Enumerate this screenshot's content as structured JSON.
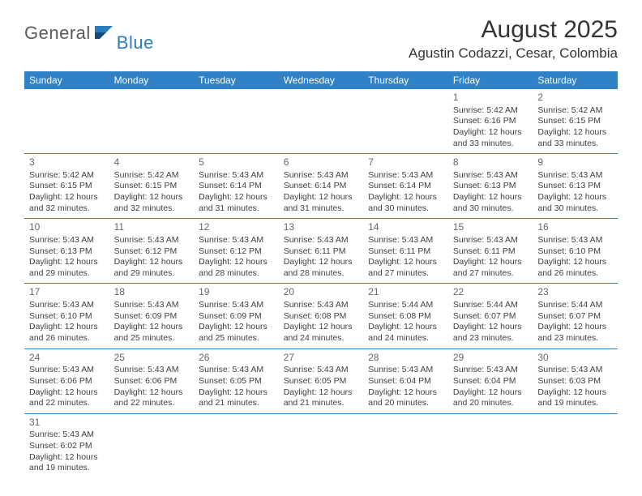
{
  "logo": {
    "word1": "General",
    "word2": "Blue"
  },
  "title": "August 2025",
  "location": "Agustin Codazzi, Cesar, Colombia",
  "colors": {
    "header_bg": "#3081c5",
    "header_text": "#ffffff",
    "row_divider": "#3081c5",
    "cell_divider": "#bbbbbb",
    "body_text": "#404040",
    "daynum_text": "#666666",
    "title_text": "#333333",
    "logo_gray": "#5a5a5a",
    "logo_blue": "#2b7bbf"
  },
  "fonts": {
    "title_pt": 30,
    "location_pt": 17,
    "header_pt": 12,
    "daynum_pt": 12,
    "cell_pt": 10.5
  },
  "day_headers": [
    "Sunday",
    "Monday",
    "Tuesday",
    "Wednesday",
    "Thursday",
    "Friday",
    "Saturday"
  ],
  "weeks": [
    [
      null,
      null,
      null,
      null,
      null,
      {
        "n": "1",
        "sunrise": "5:42 AM",
        "sunset": "6:16 PM",
        "day_h": "12",
        "day_m": "33"
      },
      {
        "n": "2",
        "sunrise": "5:42 AM",
        "sunset": "6:15 PM",
        "day_h": "12",
        "day_m": "33"
      }
    ],
    [
      {
        "n": "3",
        "sunrise": "5:42 AM",
        "sunset": "6:15 PM",
        "day_h": "12",
        "day_m": "32"
      },
      {
        "n": "4",
        "sunrise": "5:42 AM",
        "sunset": "6:15 PM",
        "day_h": "12",
        "day_m": "32"
      },
      {
        "n": "5",
        "sunrise": "5:43 AM",
        "sunset": "6:14 PM",
        "day_h": "12",
        "day_m": "31"
      },
      {
        "n": "6",
        "sunrise": "5:43 AM",
        "sunset": "6:14 PM",
        "day_h": "12",
        "day_m": "31"
      },
      {
        "n": "7",
        "sunrise": "5:43 AM",
        "sunset": "6:14 PM",
        "day_h": "12",
        "day_m": "30"
      },
      {
        "n": "8",
        "sunrise": "5:43 AM",
        "sunset": "6:13 PM",
        "day_h": "12",
        "day_m": "30"
      },
      {
        "n": "9",
        "sunrise": "5:43 AM",
        "sunset": "6:13 PM",
        "day_h": "12",
        "day_m": "30"
      }
    ],
    [
      {
        "n": "10",
        "sunrise": "5:43 AM",
        "sunset": "6:13 PM",
        "day_h": "12",
        "day_m": "29"
      },
      {
        "n": "11",
        "sunrise": "5:43 AM",
        "sunset": "6:12 PM",
        "day_h": "12",
        "day_m": "29"
      },
      {
        "n": "12",
        "sunrise": "5:43 AM",
        "sunset": "6:12 PM",
        "day_h": "12",
        "day_m": "28"
      },
      {
        "n": "13",
        "sunrise": "5:43 AM",
        "sunset": "6:11 PM",
        "day_h": "12",
        "day_m": "28"
      },
      {
        "n": "14",
        "sunrise": "5:43 AM",
        "sunset": "6:11 PM",
        "day_h": "12",
        "day_m": "27"
      },
      {
        "n": "15",
        "sunrise": "5:43 AM",
        "sunset": "6:11 PM",
        "day_h": "12",
        "day_m": "27"
      },
      {
        "n": "16",
        "sunrise": "5:43 AM",
        "sunset": "6:10 PM",
        "day_h": "12",
        "day_m": "26"
      }
    ],
    [
      {
        "n": "17",
        "sunrise": "5:43 AM",
        "sunset": "6:10 PM",
        "day_h": "12",
        "day_m": "26"
      },
      {
        "n": "18",
        "sunrise": "5:43 AM",
        "sunset": "6:09 PM",
        "day_h": "12",
        "day_m": "25"
      },
      {
        "n": "19",
        "sunrise": "5:43 AM",
        "sunset": "6:09 PM",
        "day_h": "12",
        "day_m": "25"
      },
      {
        "n": "20",
        "sunrise": "5:43 AM",
        "sunset": "6:08 PM",
        "day_h": "12",
        "day_m": "24"
      },
      {
        "n": "21",
        "sunrise": "5:44 AM",
        "sunset": "6:08 PM",
        "day_h": "12",
        "day_m": "24"
      },
      {
        "n": "22",
        "sunrise": "5:44 AM",
        "sunset": "6:07 PM",
        "day_h": "12",
        "day_m": "23"
      },
      {
        "n": "23",
        "sunrise": "5:44 AM",
        "sunset": "6:07 PM",
        "day_h": "12",
        "day_m": "23"
      }
    ],
    [
      {
        "n": "24",
        "sunrise": "5:43 AM",
        "sunset": "6:06 PM",
        "day_h": "12",
        "day_m": "22"
      },
      {
        "n": "25",
        "sunrise": "5:43 AM",
        "sunset": "6:06 PM",
        "day_h": "12",
        "day_m": "22"
      },
      {
        "n": "26",
        "sunrise": "5:43 AM",
        "sunset": "6:05 PM",
        "day_h": "12",
        "day_m": "21"
      },
      {
        "n": "27",
        "sunrise": "5:43 AM",
        "sunset": "6:05 PM",
        "day_h": "12",
        "day_m": "21"
      },
      {
        "n": "28",
        "sunrise": "5:43 AM",
        "sunset": "6:04 PM",
        "day_h": "12",
        "day_m": "20"
      },
      {
        "n": "29",
        "sunrise": "5:43 AM",
        "sunset": "6:04 PM",
        "day_h": "12",
        "day_m": "20"
      },
      {
        "n": "30",
        "sunrise": "5:43 AM",
        "sunset": "6:03 PM",
        "day_h": "12",
        "day_m": "19"
      }
    ],
    [
      {
        "n": "31",
        "sunrise": "5:43 AM",
        "sunset": "6:02 PM",
        "day_h": "12",
        "day_m": "19"
      },
      null,
      null,
      null,
      null,
      null,
      null
    ]
  ]
}
